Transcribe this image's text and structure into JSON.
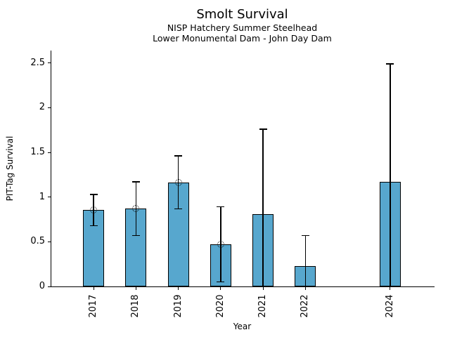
{
  "header": {
    "title": "Smolt Survival",
    "subtitle1": "NISP Hatchery Summer Steelhead",
    "subtitle2": "Lower Monumental Dam - John Day Dam"
  },
  "chart_data": {
    "type": "bar",
    "title": "Smolt Survival",
    "subtitle": [
      "NISP Hatchery Summer Steelhead",
      "Lower Monumental Dam - John Day Dam"
    ],
    "xlabel": "Year",
    "ylabel": "PIT-Tag Survival",
    "categories": [
      2017,
      2018,
      2019,
      2020,
      2021,
      2022,
      2024
    ],
    "xticklabels": [
      "2017",
      "2018",
      "2019",
      "2020",
      "2021",
      "2022",
      "2024"
    ],
    "xticklabel_rotation": 90,
    "values": [
      0.86,
      0.87,
      1.16,
      0.47,
      0.81,
      0.23,
      1.17
    ],
    "error_low": [
      0.68,
      0.57,
      0.87,
      0.05,
      0.0,
      0.0,
      0.0
    ],
    "error_high": [
      1.03,
      1.17,
      1.46,
      0.89,
      1.76,
      0.57,
      2.49
    ],
    "point_markers": [
      true,
      true,
      true,
      true,
      false,
      false,
      false
    ],
    "yticks": [
      0,
      0.5,
      1,
      1.5,
      2,
      2.5
    ],
    "yticklabels": [
      "0",
      "0.5",
      "1",
      "1.5",
      "2",
      "2.5"
    ],
    "ylim": [
      0,
      2.64
    ],
    "xlim": [
      2016.0,
      2025.05
    ],
    "bar_width": 0.5,
    "grid": false,
    "legend": null,
    "spines": [
      "left",
      "bottom"
    ],
    "colors": {
      "bar_fill": "#57A7CE",
      "bar_edge": "#000000",
      "error": "#000000",
      "marker_edge": "#000000",
      "text": "#000000",
      "background": "#FFFFFF"
    }
  }
}
